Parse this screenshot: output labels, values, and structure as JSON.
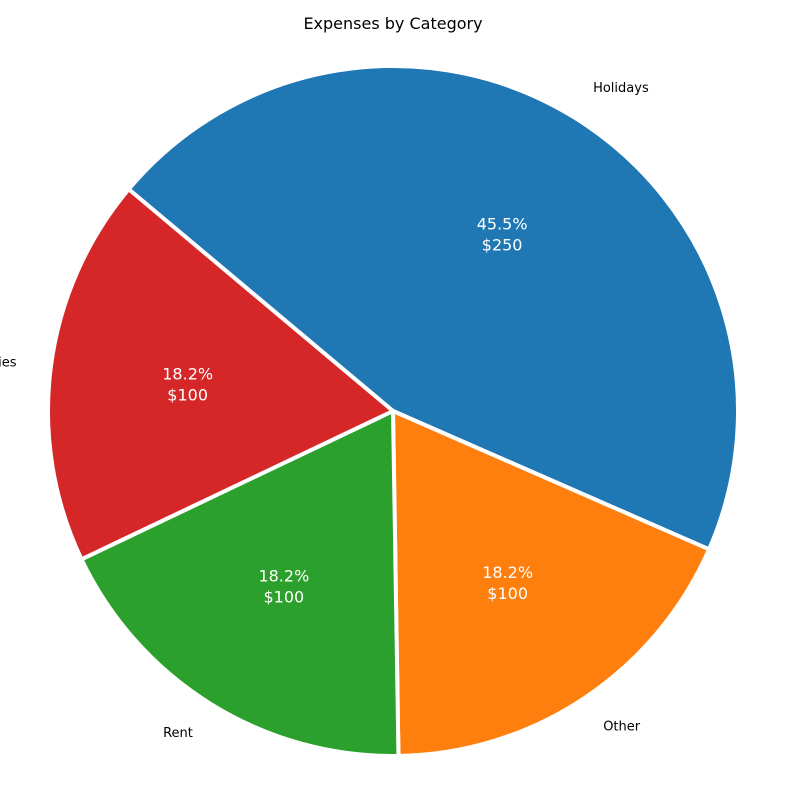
{
  "chart_data": {
    "type": "pie",
    "title": "Expenses by Category",
    "categories": [
      "Holidays",
      "Other",
      "Rent",
      "Utilities"
    ],
    "values": [
      250,
      100,
      100,
      100
    ],
    "percent_labels": [
      "45.5%",
      "18.2%",
      "18.2%",
      "18.2%"
    ],
    "value_labels": [
      "$250",
      "$100",
      "$100",
      "$100"
    ],
    "colors": [
      "#1f77b4",
      "#ff7f0e",
      "#2ca02c",
      "#d62728"
    ],
    "start_angle_deg": 140,
    "direction": "clockwise",
    "edge_color": "#ffffff",
    "legend": "none"
  }
}
